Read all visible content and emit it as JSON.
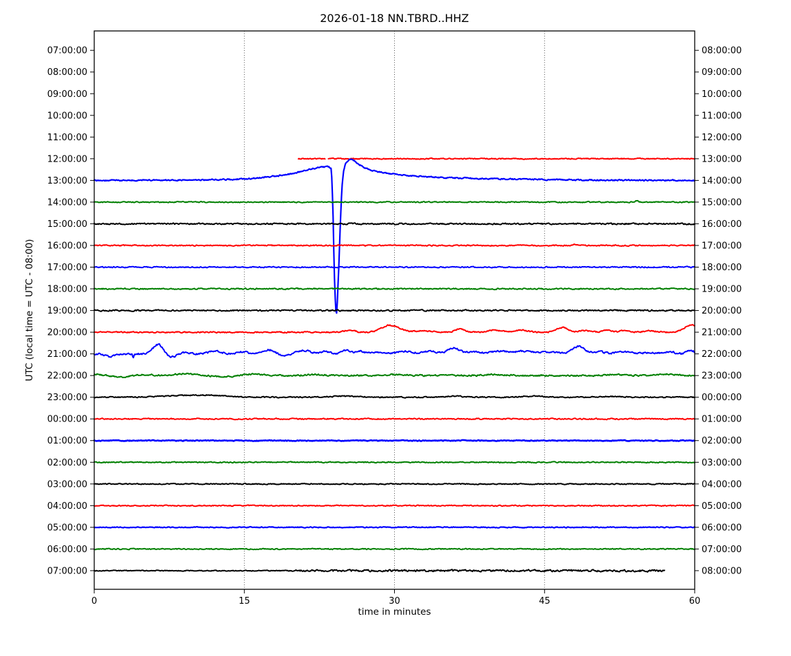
{
  "chart_data": {
    "type": "line",
    "subtype": "helicorder-dayplot",
    "title": "2026-01-18 NN.TBRD..HHZ",
    "xlabel": "time in minutes",
    "ylabel": "UTC (local time = UTC - 08:00)",
    "x_ticks": [
      0,
      15,
      30,
      45,
      60
    ],
    "x_tick_labels": [
      "0",
      "15",
      "30",
      "45",
      "60"
    ],
    "x_range": [
      0,
      60
    ],
    "grid_x": [
      15,
      30,
      45
    ],
    "legend": "none",
    "grid": "vertical-dotted",
    "trace_colors": {
      "red": "#ff0000",
      "blue": "#0000ff",
      "green": "#007f00",
      "black": "#000000"
    },
    "rows": [
      {
        "left": "07:00:00",
        "right": "08:00:00",
        "color": null
      },
      {
        "left": "08:00:00",
        "right": "09:00:00",
        "color": null
      },
      {
        "left": "09:00:00",
        "right": "10:00:00",
        "color": null
      },
      {
        "left": "10:00:00",
        "right": "11:00:00",
        "color": null
      },
      {
        "left": "11:00:00",
        "right": "12:00:00",
        "color": null
      },
      {
        "left": "12:00:00",
        "right": "13:00:00",
        "color": "red",
        "noise": 0.8,
        "segments": [
          [
            20.4,
            23.1
          ],
          [
            23.4,
            60
          ]
        ]
      },
      {
        "left": "13:00:00",
        "right": "14:00:00",
        "color": "blue",
        "noise": 1.0,
        "lw": 2.2,
        "keypoints": [
          [
            0,
            0
          ],
          [
            10,
            0.5
          ],
          [
            14,
            1.5
          ],
          [
            16,
            3
          ],
          [
            18,
            6
          ],
          [
            19.5,
            9
          ],
          [
            21,
            14
          ],
          [
            22,
            17.5
          ],
          [
            22.8,
            19.5
          ],
          [
            23.4,
            20
          ],
          [
            23.7,
            17
          ],
          [
            23.85,
            -40
          ],
          [
            23.95,
            -110
          ],
          [
            24.05,
            -165
          ],
          [
            24.15,
            -190
          ],
          [
            24.22,
            -193
          ],
          [
            24.3,
            -175
          ],
          [
            24.45,
            -120
          ],
          [
            24.6,
            -60
          ],
          [
            24.75,
            -10
          ],
          [
            24.9,
            12
          ],
          [
            25.1,
            24
          ],
          [
            25.4,
            29.5
          ],
          [
            25.7,
            31
          ],
          [
            26.0,
            28
          ],
          [
            26.4,
            23.5
          ],
          [
            27,
            18.5
          ],
          [
            27.8,
            14.5
          ],
          [
            28.8,
            11.5
          ],
          [
            30,
            9
          ],
          [
            31.5,
            7
          ],
          [
            33,
            5.5
          ],
          [
            35,
            4
          ],
          [
            38,
            2.8
          ],
          [
            42,
            1.8
          ],
          [
            46,
            1
          ],
          [
            50,
            0.5
          ],
          [
            55,
            0.2
          ],
          [
            60,
            0
          ]
        ]
      },
      {
        "left": "14:00:00",
        "right": "15:00:00",
        "color": "green",
        "noise": 0.8,
        "events": [
          [
            54.2,
            2,
            0.15
          ]
        ]
      },
      {
        "left": "15:00:00",
        "right": "16:00:00",
        "color": "black",
        "noise": 1.1
      },
      {
        "left": "16:00:00",
        "right": "17:00:00",
        "color": "red",
        "noise": 0.9,
        "events": [
          [
            48,
            1.5,
            0.1
          ]
        ]
      },
      {
        "left": "17:00:00",
        "right": "18:00:00",
        "color": "blue",
        "noise": 0.9
      },
      {
        "left": "18:00:00",
        "right": "19:00:00",
        "color": "green",
        "noise": 1.0
      },
      {
        "left": "19:00:00",
        "right": "20:00:00",
        "color": "black",
        "noise": 1.1
      },
      {
        "left": "20:00:00",
        "right": "21:00:00",
        "color": "red",
        "noise": 1.0,
        "events": [
          [
            25.5,
            3,
            0.5
          ],
          [
            29.3,
            8,
            0.7
          ],
          [
            30.3,
            4,
            0.8
          ],
          [
            33,
            2,
            0.8
          ],
          [
            36.5,
            5,
            0.45
          ],
          [
            40,
            3,
            0.7
          ],
          [
            42.7,
            3,
            0.6
          ],
          [
            46.8,
            7,
            0.55
          ],
          [
            49,
            2.5,
            0.5
          ],
          [
            51.2,
            3,
            0.45
          ],
          [
            53,
            2.5,
            0.5
          ],
          [
            55.5,
            2,
            0.6
          ],
          [
            59.4,
            8,
            0.6
          ],
          [
            60,
            5,
            0.4
          ]
        ]
      },
      {
        "left": "21:00:00",
        "right": "22:00:00",
        "color": "blue",
        "noise": 1.4,
        "events": [
          [
            1.6,
            -4,
            0.45
          ],
          [
            3.9,
            -7,
            0.06
          ],
          [
            6.4,
            14,
            0.5
          ],
          [
            7.7,
            -5,
            0.5
          ],
          [
            9,
            2,
            0.5
          ],
          [
            12.1,
            4,
            0.6
          ],
          [
            14.8,
            3,
            0.5
          ],
          [
            17.4,
            6,
            0.5
          ],
          [
            19,
            -2,
            0.4
          ],
          [
            21,
            5,
            0.65
          ],
          [
            23,
            3,
            0.5
          ],
          [
            25.2,
            5,
            0.45
          ],
          [
            26.6,
            4,
            0.4
          ],
          [
            28,
            2,
            0.5
          ],
          [
            31,
            4,
            0.8
          ],
          [
            33.5,
            4,
            0.7
          ],
          [
            35.9,
            9,
            0.6
          ],
          [
            38,
            3,
            0.6
          ],
          [
            40.5,
            4,
            0.9
          ],
          [
            43,
            4,
            0.8
          ],
          [
            45.5,
            3,
            0.7
          ],
          [
            48.4,
            11,
            0.6
          ],
          [
            50.5,
            3,
            0.6
          ],
          [
            53,
            3,
            0.8
          ],
          [
            55.5,
            2,
            0.6
          ],
          [
            57.5,
            3,
            0.5
          ],
          [
            59.6,
            5,
            0.4
          ]
        ]
      },
      {
        "left": "22:00:00",
        "right": "23:00:00",
        "color": "green",
        "noise": 1.2,
        "events": [
          [
            0,
            2,
            0.8
          ],
          [
            2.5,
            -2,
            0.9
          ],
          [
            5,
            1.5,
            0.8
          ],
          [
            9,
            3,
            0.9
          ],
          [
            13,
            -2,
            0.8
          ],
          [
            16,
            2,
            0.9
          ],
          [
            22,
            1.5,
            0.8
          ],
          [
            30,
            1.5,
            1
          ],
          [
            40,
            1.5,
            1
          ],
          [
            52,
            1.5,
            1
          ],
          [
            57,
            2,
            1
          ]
        ]
      },
      {
        "left": "23:00:00",
        "right": "00:00:00",
        "color": "black",
        "noise": 0.9,
        "events": [
          [
            9,
            2.5,
            2
          ],
          [
            12,
            2,
            1.5
          ],
          [
            25,
            1.5,
            1.5
          ],
          [
            36,
            1.5,
            1
          ],
          [
            44,
            1.5,
            1
          ],
          [
            52,
            1,
            1
          ]
        ]
      },
      {
        "left": "00:00:00",
        "right": "01:00:00",
        "color": "red",
        "noise": 0.9
      },
      {
        "left": "01:00:00",
        "right": "02:00:00",
        "color": "blue",
        "noise": 0.7,
        "lw": 2.6
      },
      {
        "left": "02:00:00",
        "right": "03:00:00",
        "color": "green",
        "noise": 0.8
      },
      {
        "left": "03:00:00",
        "right": "04:00:00",
        "color": "black",
        "noise": 0.8
      },
      {
        "left": "04:00:00",
        "right": "05:00:00",
        "color": "red",
        "noise": 0.8
      },
      {
        "left": "05:00:00",
        "right": "06:00:00",
        "color": "blue",
        "noise": 0.7,
        "lw": 2.2
      },
      {
        "left": "06:00:00",
        "right": "07:00:00",
        "color": "green",
        "noise": 0.8
      },
      {
        "left": "07:00:00",
        "right": "08:00:00",
        "color": "black",
        "noise": [
          [
            0,
            0.6
          ],
          [
            19,
            0.7
          ],
          [
            21,
            1.5
          ],
          [
            57,
            1.5
          ]
        ],
        "segments": [
          [
            0,
            57
          ]
        ]
      }
    ]
  }
}
